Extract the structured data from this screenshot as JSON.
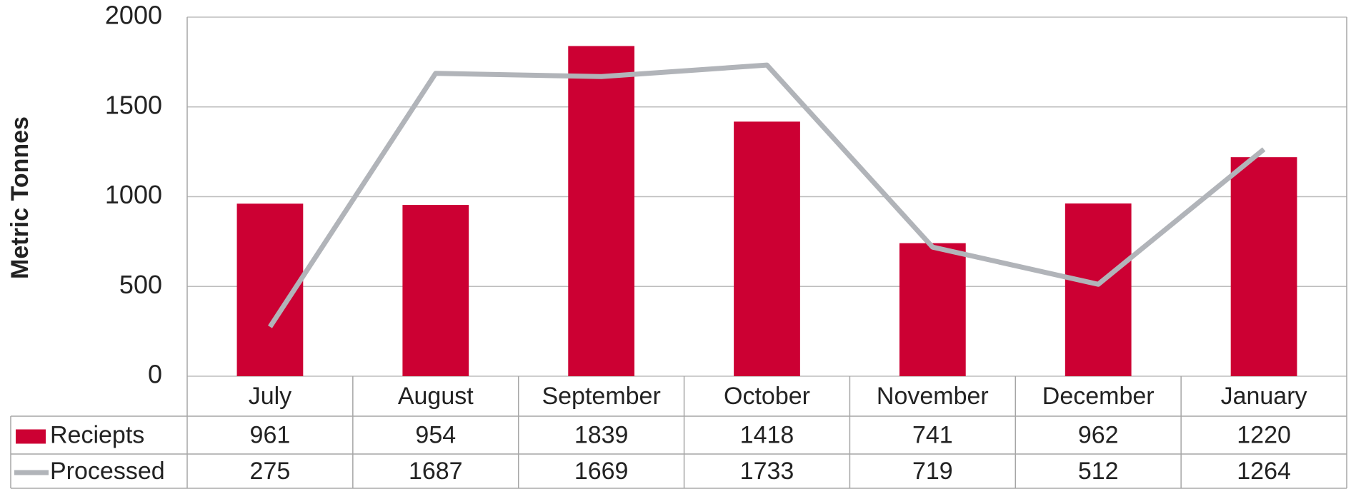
{
  "chart_data": {
    "type": "combo",
    "y_label": "Metric Tonnes",
    "categories": [
      "July",
      "August",
      "September",
      "October",
      "November",
      "December",
      "January"
    ],
    "series": [
      {
        "name": "Reciepts",
        "type": "bar",
        "color": "#cc0033",
        "values": [
          961,
          954,
          1839,
          1418,
          741,
          962,
          1220
        ]
      },
      {
        "name": "Processed",
        "type": "line",
        "color": "#b1b4b9",
        "values": [
          275,
          1687,
          1669,
          1733,
          719,
          512,
          1264
        ]
      }
    ],
    "ylim": [
      0,
      2000
    ],
    "yticks": [
      0,
      500,
      1000,
      1500,
      2000
    ],
    "grid": true,
    "data_table": true
  }
}
